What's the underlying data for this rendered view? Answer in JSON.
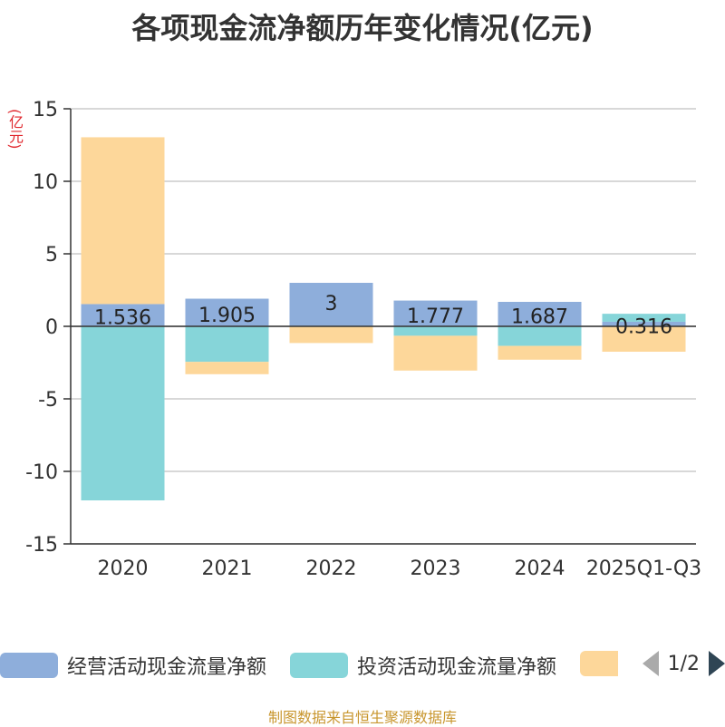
{
  "title": "各项现金流净额历年变化情况(亿元)",
  "unit_label": "(亿元)",
  "source": "制图数据来自恒生聚源数据库",
  "pager": {
    "text": "1/2",
    "prev_icon": "triangle-left-icon",
    "next_icon": "triangle-right-icon"
  },
  "legend": [
    {
      "label": "经营活动现金流量净额",
      "color": "#8eaedb"
    },
    {
      "label": "投资活动现金流量净额",
      "color": "#86d5d9"
    },
    {
      "label": "",
      "color": "#fdd79a"
    }
  ],
  "chart_data": {
    "type": "bar",
    "stacked": true,
    "categories": [
      "2020",
      "2021",
      "2022",
      "2023",
      "2024",
      "2025Q1-Q3"
    ],
    "series": [
      {
        "name": "经营活动现金流量净额",
        "color": "#8eaedb",
        "values": [
          1.536,
          1.905,
          3,
          1.777,
          1.687,
          0.316
        ],
        "data_labels": [
          "1.536",
          "1.905",
          "3",
          "1.777",
          "1.687",
          "0.316"
        ]
      },
      {
        "name": "投资活动现金流量净额",
        "color": "#86d5d9",
        "values": [
          -12.0,
          -2.45,
          0.0,
          -0.65,
          -1.35,
          0.55
        ]
      },
      {
        "name": "",
        "color": "#fdd79a",
        "values": [
          11.5,
          -0.85,
          -1.15,
          -2.4,
          -0.95,
          -1.75
        ]
      }
    ],
    "yticks": [
      15,
      10,
      5,
      0,
      -5,
      -10,
      -15
    ],
    "ylim": [
      -15,
      15
    ],
    "grid": true,
    "legend_position": "bottom"
  }
}
